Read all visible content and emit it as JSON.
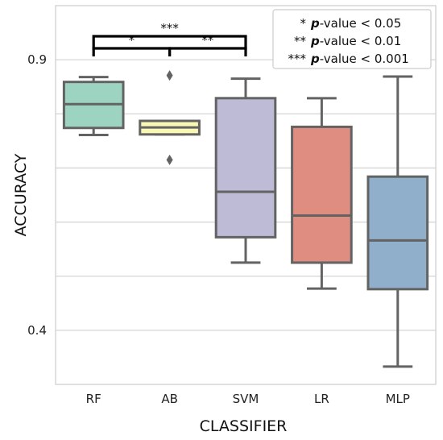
{
  "chart_data": {
    "type": "box",
    "xlabel": "CLASSIFIER",
    "ylabel": "ACCURACY",
    "ylim": [
      0.3,
      1.0
    ],
    "yticks": [
      0.4,
      0.9
    ],
    "grid": "horizontal",
    "categories": [
      "RF",
      "AB",
      "SVM",
      "LR",
      "MLP"
    ],
    "colors": [
      "#9dd4c1",
      "#f9f7b4",
      "#bdbbd6",
      "#de8d80",
      "#8fafcb"
    ],
    "boxes": [
      {
        "name": "RF",
        "whisker_low": 0.761,
        "q1": 0.774,
        "median": 0.818,
        "q3": 0.859,
        "whisker_high": 0.868,
        "outliers": []
      },
      {
        "name": "AB",
        "whisker_low": 0.762,
        "q1": 0.762,
        "median": 0.775,
        "q3": 0.787,
        "whisker_high": 0.787,
        "outliers": [
          0.871,
          0.715
        ]
      },
      {
        "name": "SVM",
        "whisker_low": 0.525,
        "q1": 0.572,
        "median": 0.656,
        "q3": 0.829,
        "whisker_high": 0.865,
        "outliers": []
      },
      {
        "name": "LR",
        "whisker_low": 0.477,
        "q1": 0.525,
        "median": 0.612,
        "q3": 0.776,
        "whisker_high": 0.829,
        "outliers": []
      },
      {
        "name": "MLP",
        "whisker_low": 0.333,
        "q1": 0.476,
        "median": 0.566,
        "q3": 0.684,
        "whisker_high": 0.869,
        "outliers": []
      }
    ],
    "significance": [
      {
        "pair": [
          "RF",
          "AB"
        ],
        "label": "*"
      },
      {
        "pair": [
          "AB",
          "SVM"
        ],
        "label": "**"
      },
      {
        "pair": [
          "RF",
          "SVM"
        ],
        "label": "***"
      }
    ],
    "legend": {
      "placement": "top-right",
      "entries": [
        {
          "symbol": "*",
          "p": "p",
          "text": "-value < 0.05"
        },
        {
          "symbol": "**",
          "p": "p",
          "text": "-value < 0.01"
        },
        {
          "symbol": "***",
          "p": "p",
          "text": "-value < 0.001"
        }
      ]
    }
  }
}
